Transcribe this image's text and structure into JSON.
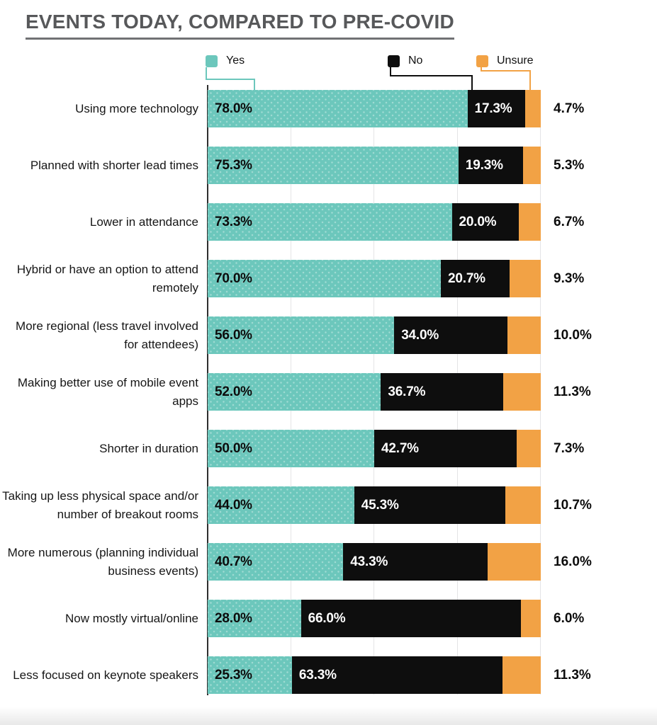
{
  "title": "EVENTS TODAY, COMPARED TO PRE-COVID",
  "legend": {
    "yes": {
      "label": "Yes",
      "color": "#6cc7bc"
    },
    "no": {
      "label": "No",
      "color": "#0e0e0e"
    },
    "unsure": {
      "label": "Unsure",
      "color": "#f2a245"
    }
  },
  "chart_data": {
    "type": "bar",
    "orientation": "horizontal",
    "stacked": true,
    "title": "EVENTS TODAY, COMPARED TO PRE-COVID",
    "legend_position": "top",
    "grid": "vertical",
    "xlim": [
      0,
      100
    ],
    "gridlines_percent": [
      25,
      50,
      75,
      100
    ],
    "categories": [
      "Using more technology",
      "Planned with shorter lead times",
      "Lower in attendance",
      "Hybrid or have an option to attend remotely",
      "More regional (less travel involved for attendees)",
      "Making better use of mobile event apps",
      "Shorter in duration",
      "Taking up less physical space and/or number of breakout rooms",
      "More numerous (planning individual business events)",
      "Now mostly virtual/online",
      "Less focused on keynote speakers"
    ],
    "series": [
      {
        "name": "Yes",
        "color": "#6cc7bc",
        "values": [
          78.0,
          75.3,
          73.3,
          70.0,
          56.0,
          52.0,
          50.0,
          44.0,
          40.7,
          28.0,
          25.3
        ],
        "labels": [
          "78.0%",
          "75.3%",
          "73.3%",
          "70.0%",
          "56.0%",
          "52.0%",
          "50.0%",
          "44.0%",
          "40.7%",
          "28.0%",
          "25.3%"
        ]
      },
      {
        "name": "No",
        "color": "#0e0e0e",
        "values": [
          17.3,
          19.3,
          20.0,
          20.7,
          34.0,
          36.7,
          42.7,
          45.3,
          43.3,
          66.0,
          63.3
        ],
        "labels": [
          "17.3%",
          "19.3%",
          "20.0%",
          "20.7%",
          "34.0%",
          "36.7%",
          "42.7%",
          "45.3%",
          "43.3%",
          "66.0%",
          "63.3%"
        ]
      },
      {
        "name": "Unsure",
        "color": "#f2a245",
        "values": [
          4.7,
          5.3,
          6.7,
          9.3,
          10.0,
          11.3,
          7.3,
          10.7,
          16.0,
          6.0,
          11.3
        ],
        "labels": [
          "4.7%",
          "5.3%",
          "6.7%",
          "9.3%",
          "10.0%",
          "11.3%",
          "7.3%",
          "10.7%",
          "16.0%",
          "6.0%",
          "11.3%"
        ]
      }
    ]
  }
}
